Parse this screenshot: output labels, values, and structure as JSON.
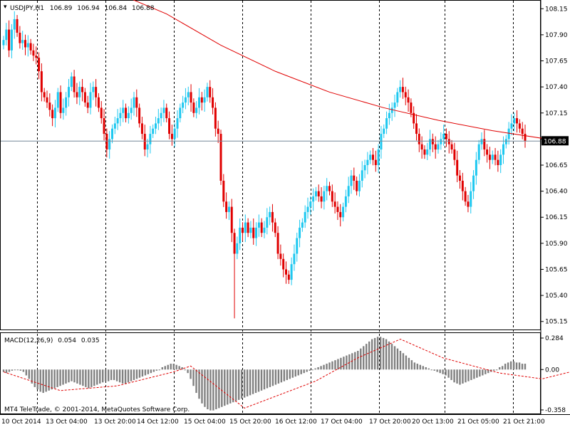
{
  "symbol_header": {
    "symbol": "USDJPY,H1",
    "open": "106.89",
    "high": "106.94",
    "low": "106.84",
    "close": "106.88"
  },
  "macd_header": {
    "label": "MACD(12,26,9)",
    "main": "0.054",
    "signal": "0.035"
  },
  "copyright": "MT4 TeleTrade, © 2001-2014, MetaQuotes Software Corp.",
  "colors": {
    "bull": "#1ec8f0",
    "bear": "#e00000",
    "ma": "#e00000",
    "histogram": "#808080",
    "signal": "#e00000",
    "bid_line": "#778899",
    "grid": "#000000"
  },
  "chart_data": [
    {
      "type": "candlestick",
      "title": "USDJPY,H1",
      "ylim": [
        105.08,
        108.22
      ],
      "y_ticks": [
        "108.15",
        "107.90",
        "107.65",
        "107.40",
        "107.15",
        "106.90",
        "106.65",
        "106.40",
        "106.15",
        "105.90",
        "105.65",
        "105.40",
        "105.15"
      ],
      "current_price": "106.88",
      "x_ticks": [
        "10 Oct 2014",
        "13 Oct 04:00",
        "13 Oct 20:00",
        "14 Oct 12:00",
        "15 Oct 04:00",
        "15 Oct 20:00",
        "16 Oct 12:00",
        "17 Oct 04:00",
        "17 Oct 20:00",
        "20 Oct 13:00",
        "21 Oct 05:00",
        "21 Oct 21:00"
      ],
      "closes": [
        107.85,
        107.95,
        107.75,
        107.95,
        108.05,
        107.92,
        107.82,
        107.85,
        107.78,
        107.82,
        107.75,
        107.7,
        107.68,
        107.55,
        107.35,
        107.3,
        107.25,
        107.18,
        107.1,
        107.2,
        107.35,
        107.15,
        107.2,
        107.3,
        107.4,
        107.5,
        107.35,
        107.3,
        107.4,
        107.35,
        107.25,
        107.2,
        107.35,
        107.4,
        107.3,
        107.2,
        107.1,
        106.95,
        106.8,
        106.9,
        107.0,
        107.05,
        107.1,
        107.15,
        107.2,
        107.1,
        107.15,
        107.2,
        107.3,
        107.2,
        107.05,
        106.95,
        106.8,
        106.85,
        106.95,
        107.0,
        107.05,
        107.1,
        107.15,
        107.2,
        107.1,
        106.95,
        106.9,
        107.0,
        107.1,
        107.2,
        107.25,
        107.3,
        107.35,
        107.25,
        107.15,
        107.2,
        107.3,
        107.25,
        107.3,
        107.4,
        107.3,
        107.2,
        107.0,
        106.95,
        106.5,
        106.3,
        106.2,
        106.25,
        106.0,
        105.8,
        105.9,
        106.05,
        106.0,
        106.1,
        106.0,
        106.05,
        105.95,
        106.05,
        106.1,
        106.0,
        106.05,
        106.15,
        106.2,
        106.1,
        106.0,
        105.8,
        105.75,
        105.65,
        105.6,
        105.55,
        105.7,
        105.8,
        105.95,
        106.05,
        106.1,
        106.2,
        106.25,
        106.3,
        106.35,
        106.4,
        106.35,
        106.3,
        106.4,
        106.45,
        106.4,
        106.3,
        106.25,
        106.2,
        106.15,
        106.25,
        106.35,
        106.45,
        106.55,
        106.5,
        106.4,
        106.5,
        106.6,
        106.65,
        106.7,
        106.75,
        106.7,
        106.65,
        106.8,
        106.95,
        107.0,
        107.1,
        107.15,
        107.2,
        107.25,
        107.35,
        107.4,
        107.35,
        107.3,
        107.25,
        107.15,
        107.05,
        106.95,
        106.85,
        106.8,
        106.75,
        106.8,
        106.9,
        106.85,
        106.8,
        106.85,
        106.9,
        106.95,
        106.9,
        106.85,
        106.8,
        106.7,
        106.55,
        106.5,
        106.4,
        106.3,
        106.25,
        106.4,
        106.55,
        106.7,
        106.85,
        106.9,
        106.8,
        106.75,
        106.7,
        106.75,
        106.7,
        106.65,
        106.75,
        106.85,
        106.9,
        107.0,
        107.05,
        107.1,
        107.05,
        107.0,
        106.95,
        106.88
      ],
      "ma_label": "moving average",
      "ma": [
        [
          0,
          108.4
        ],
        [
          40,
          108.32
        ],
        [
          60,
          108.1
        ],
        [
          80,
          107.8
        ],
        [
          100,
          107.55
        ],
        [
          120,
          107.35
        ],
        [
          140,
          107.2
        ],
        [
          160,
          107.08
        ],
        [
          180,
          106.98
        ],
        [
          200,
          106.9
        ],
        [
          207,
          106.88
        ]
      ]
    },
    {
      "type": "histogram",
      "title": "MACD(12,26,9)",
      "ylim": [
        -0.37,
        0.3
      ],
      "y_ticks": [
        "0.284",
        "0.00",
        "-0.358"
      ],
      "histogram": [
        -0.02,
        -0.03,
        -0.02,
        -0.01,
        0.0,
        0.0,
        -0.01,
        -0.02,
        -0.05,
        -0.08,
        -0.12,
        -0.15,
        -0.17,
        -0.19,
        -0.2,
        -0.19,
        -0.18,
        -0.17,
        -0.16,
        -0.15,
        -0.14,
        -0.13,
        -0.12,
        -0.11,
        -0.1,
        -0.11,
        -0.12,
        -0.13,
        -0.14,
        -0.15,
        -0.16,
        -0.15,
        -0.14,
        -0.13,
        -0.12,
        -0.11,
        -0.1,
        -0.1,
        -0.09,
        -0.09,
        -0.1,
        -0.11,
        -0.12,
        -0.12,
        -0.11,
        -0.1,
        -0.09,
        -0.08,
        -0.07,
        -0.06,
        -0.05,
        -0.04,
        -0.03,
        -0.02,
        -0.01,
        0.0,
        0.02,
        0.03,
        0.04,
        0.05,
        0.05,
        0.04,
        0.03,
        0.02,
        0.0,
        -0.03,
        -0.08,
        -0.14,
        -0.2,
        -0.25,
        -0.29,
        -0.32,
        -0.34,
        -0.35,
        -0.35,
        -0.34,
        -0.33,
        -0.32,
        -0.31,
        -0.3,
        -0.29,
        -0.28,
        -0.27,
        -0.26,
        -0.25,
        -0.24,
        -0.23,
        -0.22,
        -0.21,
        -0.2,
        -0.19,
        -0.18,
        -0.17,
        -0.16,
        -0.15,
        -0.14,
        -0.13,
        -0.12,
        -0.11,
        -0.1,
        -0.09,
        -0.08,
        -0.07,
        -0.06,
        -0.05,
        -0.04,
        -0.03,
        -0.02,
        -0.01,
        0.0,
        0.01,
        0.02,
        0.03,
        0.04,
        0.05,
        0.06,
        0.07,
        0.08,
        0.09,
        0.1,
        0.11,
        0.12,
        0.13,
        0.14,
        0.15,
        0.16,
        0.18,
        0.2,
        0.22,
        0.24,
        0.26,
        0.27,
        0.28,
        0.28,
        0.27,
        0.26,
        0.24,
        0.22,
        0.2,
        0.18,
        0.16,
        0.14,
        0.12,
        0.1,
        0.08,
        0.06,
        0.05,
        0.04,
        0.03,
        0.02,
        0.01,
        0.0,
        -0.01,
        -0.02,
        -0.03,
        -0.04,
        -0.05,
        -0.07,
        -0.09,
        -0.11,
        -0.12,
        -0.13,
        -0.12,
        -0.11,
        -0.1,
        -0.09,
        -0.08,
        -0.07,
        -0.06,
        -0.05,
        -0.04,
        -0.03,
        -0.02,
        -0.01,
        0.0,
        0.02,
        0.03,
        0.05,
        0.06,
        0.07,
        0.07,
        0.06,
        0.06,
        0.05,
        0.05
      ],
      "signal_trend": [
        [
          0,
          -0.02
        ],
        [
          20,
          -0.18
        ],
        [
          40,
          -0.14
        ],
        [
          60,
          -0.02
        ],
        [
          66,
          0.03
        ],
        [
          85,
          -0.33
        ],
        [
          110,
          -0.1
        ],
        [
          125,
          0.1
        ],
        [
          140,
          0.26
        ],
        [
          155,
          0.1
        ],
        [
          175,
          -0.03
        ],
        [
          190,
          -0.08
        ],
        [
          210,
          0.04
        ]
      ]
    }
  ]
}
